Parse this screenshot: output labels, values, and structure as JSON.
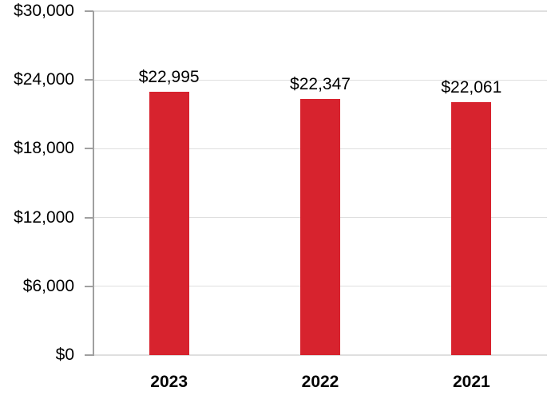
{
  "chart_data": {
    "type": "bar",
    "title": "",
    "xlabel": "",
    "ylabel": "",
    "categories": [
      "2023",
      "2022",
      "2021"
    ],
    "values": [
      22995,
      22347,
      22061
    ],
    "value_labels": [
      "$22,995",
      "$22,347",
      "$22,061"
    ],
    "ylim": [
      0,
      30000
    ],
    "yticks": [
      30000,
      24000,
      18000,
      12000,
      6000,
      0
    ],
    "ytick_labels": [
      "$30,000",
      "$24,000",
      "$18,000",
      "$12,000",
      "$6,000",
      "$0"
    ],
    "grid": true,
    "legend": false
  },
  "colors": {
    "bar": "#D7232E",
    "axis": "#A0A0A0",
    "gridline": "#DFDFDF",
    "label_text": "#000000",
    "background": "#FFFFFF"
  }
}
